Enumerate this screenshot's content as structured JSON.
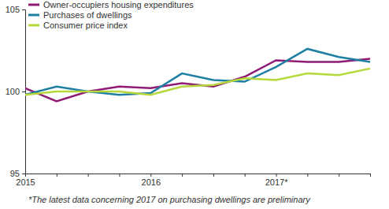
{
  "chart_data": {
    "type": "line",
    "categories": [
      "2015",
      null,
      null,
      null,
      "2016",
      null,
      null,
      null,
      "2017*",
      null,
      null,
      null
    ],
    "series": [
      {
        "name": "Owner-occupiers housing expenditures",
        "color": "#8e1b74",
        "values": [
          100.2,
          99.4,
          100.0,
          100.3,
          100.2,
          100.5,
          100.3,
          100.9,
          101.9,
          101.8,
          101.8,
          102.0
        ]
      },
      {
        "name": "Purchases of dwellings",
        "color": "#1f7fa3",
        "values": [
          99.8,
          100.3,
          100.0,
          99.8,
          99.9,
          101.1,
          100.7,
          100.6,
          101.5,
          102.6,
          102.1,
          101.8
        ]
      },
      {
        "name": "Consumer price index",
        "color": "#b5d83a",
        "values": [
          99.8,
          100.0,
          100.0,
          100.0,
          99.8,
          100.3,
          100.4,
          100.8,
          100.7,
          101.1,
          101.0,
          101.4
        ]
      }
    ],
    "ylim": [
      95,
      105
    ],
    "yticks": [
      95,
      100,
      105
    ],
    "grid": false,
    "legend": "upper left",
    "annotations": [
      "*The latest data concerning 2017 on purchasing dwellings are preliminary"
    ]
  }
}
